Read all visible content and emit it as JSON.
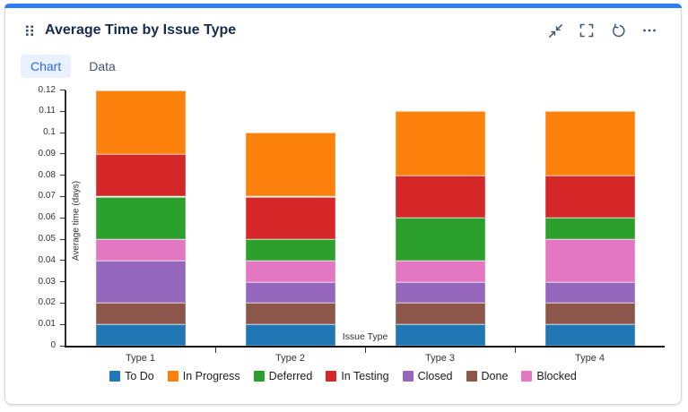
{
  "card": {
    "title": "Average Time by Issue Type",
    "accent_color": "#2E7CF6",
    "tabs": [
      {
        "label": "Chart",
        "active": true
      },
      {
        "label": "Data",
        "active": false
      }
    ],
    "toolbar_icons": [
      "collapse-icon",
      "fullscreen-icon",
      "refresh-icon",
      "more-icon"
    ]
  },
  "chart_data": {
    "type": "bar",
    "stacked": true,
    "title": "Average Time by Issue Type",
    "xlabel": "Issue Type",
    "ylabel": "Average time (days)",
    "categories": [
      "Type 1",
      "Type 2",
      "Type 3",
      "Type 4"
    ],
    "series": [
      {
        "name": "To Do",
        "color": "#2077B4",
        "values": [
          0.01,
          0.01,
          0.01,
          0.01
        ]
      },
      {
        "name": "In Progress",
        "color": "#FD810D",
        "values": [
          0.03,
          0.03,
          0.03,
          0.03
        ]
      },
      {
        "name": "Deferred",
        "color": "#2CA02C",
        "values": [
          0.02,
          0.01,
          0.02,
          0.01
        ]
      },
      {
        "name": "In Testing",
        "color": "#D62728",
        "values": [
          0.02,
          0.02,
          0.02,
          0.02
        ]
      },
      {
        "name": "Closed",
        "color": "#9467BD",
        "values": [
          0.02,
          0.01,
          0.01,
          0.01
        ]
      },
      {
        "name": "Done",
        "color": "#8C564B",
        "values": [
          0.01,
          0.01,
          0.01,
          0.01
        ]
      },
      {
        "name": "Blocked",
        "color": "#E377C2",
        "values": [
          0.01,
          0.01,
          0.01,
          0.02
        ]
      }
    ],
    "stack_order": [
      "To Do",
      "Done",
      "Closed",
      "Blocked",
      "Deferred",
      "In Testing",
      "In Progress"
    ],
    "totals": [
      0.12,
      0.1,
      0.11,
      0.11
    ],
    "ylim": [
      0,
      0.12
    ],
    "ytick_step": 0.01,
    "grid": false,
    "legend_position": "bottom"
  }
}
